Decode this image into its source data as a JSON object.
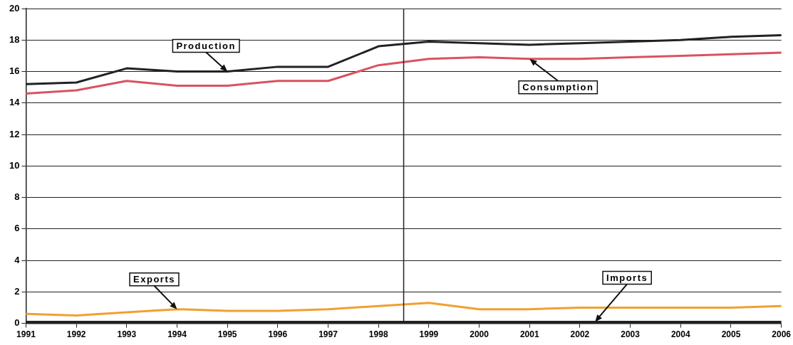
{
  "chart_data": {
    "type": "line",
    "x": [
      1991,
      1992,
      1993,
      1994,
      1995,
      1996,
      1997,
      1998,
      1999,
      2000,
      2001,
      2002,
      2003,
      2004,
      2005,
      2006
    ],
    "series": [
      {
        "color": "#222222",
        "values": [
          15.2,
          15.3,
          16.2,
          16.0,
          16.0,
          16.3,
          16.3,
          17.6,
          17.9,
          17.8,
          17.7,
          17.8,
          17.9,
          18.0,
          18.2,
          18.3
        ]
      },
      {
        "color": "#d9535f",
        "values": [
          14.6,
          14.8,
          15.4,
          15.1,
          15.1,
          15.4,
          15.4,
          16.4,
          16.8,
          16.9,
          16.8,
          16.8,
          16.9,
          17.0,
          17.1,
          17.2
        ]
      },
      {
        "color": "#f0a030",
        "values": [
          0.6,
          0.5,
          0.7,
          0.9,
          0.8,
          0.8,
          0.9,
          1.1,
          1.3,
          0.9,
          0.9,
          1.0,
          1.0,
          1.0,
          1.0,
          1.1
        ]
      },
      {
        "color": "#222222",
        "values": [
          0.1,
          0.1,
          0.1,
          0.1,
          0.1,
          0.1,
          0.1,
          0.1,
          0.1,
          0.1,
          0.1,
          0.1,
          0.1,
          0.1,
          0.1,
          0.1
        ]
      }
    ],
    "annotations": [
      {
        "text": "Production",
        "x": 1995,
        "y": 16.0
      },
      {
        "text": "Consumption",
        "x": 2001,
        "y": 16.8
      },
      {
        "text": "Exports",
        "x": 1994,
        "y": 0.9
      },
      {
        "text": "Imports",
        "x": 2002.3,
        "y": 0.1
      }
    ],
    "ref_lines": [
      {
        "axis": "x",
        "value": 1998.5,
        "color": "#222222"
      }
    ],
    "xlim": [
      1991,
      2006
    ],
    "xticks": [
      1991,
      1992,
      1993,
      1994,
      1995,
      1996,
      1997,
      1998,
      1999,
      2000,
      2001,
      2002,
      2003,
      2004,
      2005,
      2006
    ],
    "ylim": [
      0,
      20
    ],
    "yticks": [
      0,
      2,
      4,
      6,
      8,
      10,
      12,
      14,
      16,
      18,
      20
    ],
    "grid": "y",
    "legend": false,
    "marker": "none",
    "line_style": "solid"
  }
}
